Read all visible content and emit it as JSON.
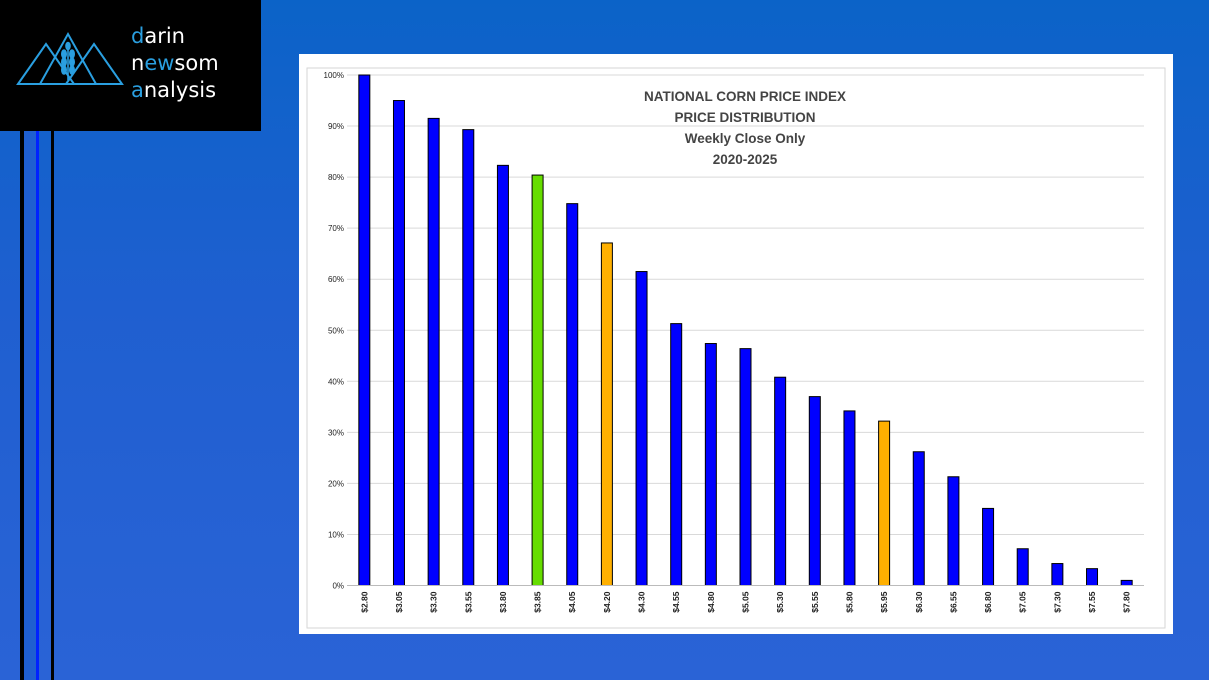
{
  "logo": {
    "line1": {
      "accent": "d",
      "rest": "arin"
    },
    "line2": {
      "pre": "n",
      "accent": "ew",
      "post": "som"
    },
    "line3": {
      "accent": "a",
      "rest": "nalysis"
    }
  },
  "colors": {
    "background": "#1f5fd0",
    "default_bar": "#0000ff",
    "green_bar": "#66dd00",
    "orange_bar": "#ffb000",
    "logo_accent": "#2a9fe0"
  },
  "chart_data": {
    "type": "bar",
    "title": [
      "NATIONAL CORN PRICE INDEX",
      "PRICE DISTRIBUTION",
      "Weekly Close Only",
      "2020-2025"
    ],
    "categories": [
      "$2.80",
      "$3.05",
      "$3.30",
      "$3.55",
      "$3.80",
      "$3.85",
      "$4.05",
      "$4.20",
      "$4.30",
      "$4.55",
      "$4.80",
      "$5.05",
      "$5.30",
      "$5.55",
      "$5.80",
      "$5.95",
      "$6.30",
      "$6.55",
      "$6.80",
      "$7.05",
      "$7.30",
      "$7.55",
      "$7.80"
    ],
    "values": [
      100,
      95,
      91.5,
      89.3,
      82.3,
      80.4,
      74.8,
      67.1,
      61.5,
      51.3,
      47.4,
      46.4,
      40.8,
      37,
      34.2,
      32.2,
      26.2,
      21.3,
      15.1,
      7.2,
      4.3,
      3.3,
      1
    ],
    "bar_colors": [
      "#0000ff",
      "#0000ff",
      "#0000ff",
      "#0000ff",
      "#0000ff",
      "#66dd00",
      "#0000ff",
      "#ffb000",
      "#0000ff",
      "#0000ff",
      "#0000ff",
      "#0000ff",
      "#0000ff",
      "#0000ff",
      "#0000ff",
      "#ffb000",
      "#0000ff",
      "#0000ff",
      "#0000ff",
      "#0000ff",
      "#0000ff",
      "#0000ff",
      "#0000ff"
    ],
    "y_ticks": [
      "0%",
      "10%",
      "20%",
      "30%",
      "40%",
      "50%",
      "60%",
      "70%",
      "80%",
      "90%",
      "100%"
    ],
    "ylim": [
      0,
      100
    ],
    "grid": true,
    "xlabel": "",
    "ylabel": ""
  }
}
